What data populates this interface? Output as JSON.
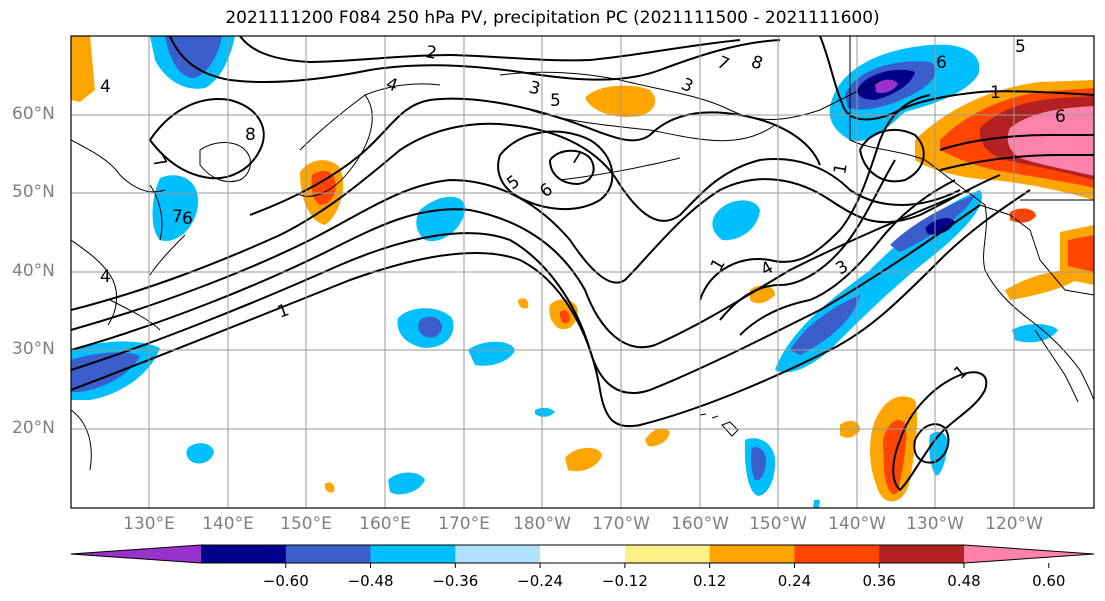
{
  "title": "2021111200 F084 250 hPa PV, precipitation PC (2021111500 - 2021111600)",
  "lat_labels": [
    "60°N",
    "50°N",
    "40°N",
    "30°N",
    "20°N"
  ],
  "lon_labels": [
    "130°E",
    "140°E",
    "150°E",
    "160°E",
    "170°E",
    "180°W",
    "170°W",
    "160°W",
    "150°W",
    "140°W",
    "130°W",
    "120°W"
  ],
  "contour_labels": [
    "1",
    "2",
    "3",
    "4",
    "5",
    "6",
    "7",
    "8",
    "1",
    "3",
    "4",
    "6",
    "7",
    "1",
    "4",
    "5",
    "6",
    "7",
    "8",
    "1",
    "3",
    "4",
    "5",
    "6",
    "7",
    "1"
  ],
  "colorbar": {
    "ticks": [
      "−0.60",
      "−0.48",
      "−0.36",
      "−0.24",
      "−0.12",
      "0.12",
      "0.24",
      "0.36",
      "0.48",
      "0.60"
    ],
    "colors": [
      "#9932cc",
      "#00008b",
      "#3a5fcd",
      "#00bfff",
      "#b0e2ff",
      "#ffffff",
      "#fff08a",
      "#ffa500",
      "#ff4500",
      "#b22222",
      "#ff82ab"
    ]
  },
  "colors": {
    "coast": "#000000",
    "contour": "#000000",
    "grid": "#9a9a9a",
    "label_gray": "#7f7f7f"
  }
}
